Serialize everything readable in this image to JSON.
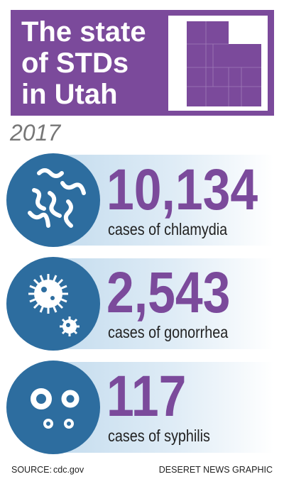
{
  "header": {
    "title_lines": [
      "The state",
      "of STDs",
      "in Utah"
    ],
    "year": "2017"
  },
  "stats": [
    {
      "number": "10,134",
      "label": "cases of chlamydia"
    },
    {
      "number": "2,543",
      "label": "cases of gonorrhea"
    },
    {
      "number": "117",
      "label": "cases of syphilis"
    }
  ],
  "footer": {
    "source_label": "SOURCE:",
    "source": "cdc.gov",
    "credit": "DESERET NEWS GRAPHIC"
  }
}
